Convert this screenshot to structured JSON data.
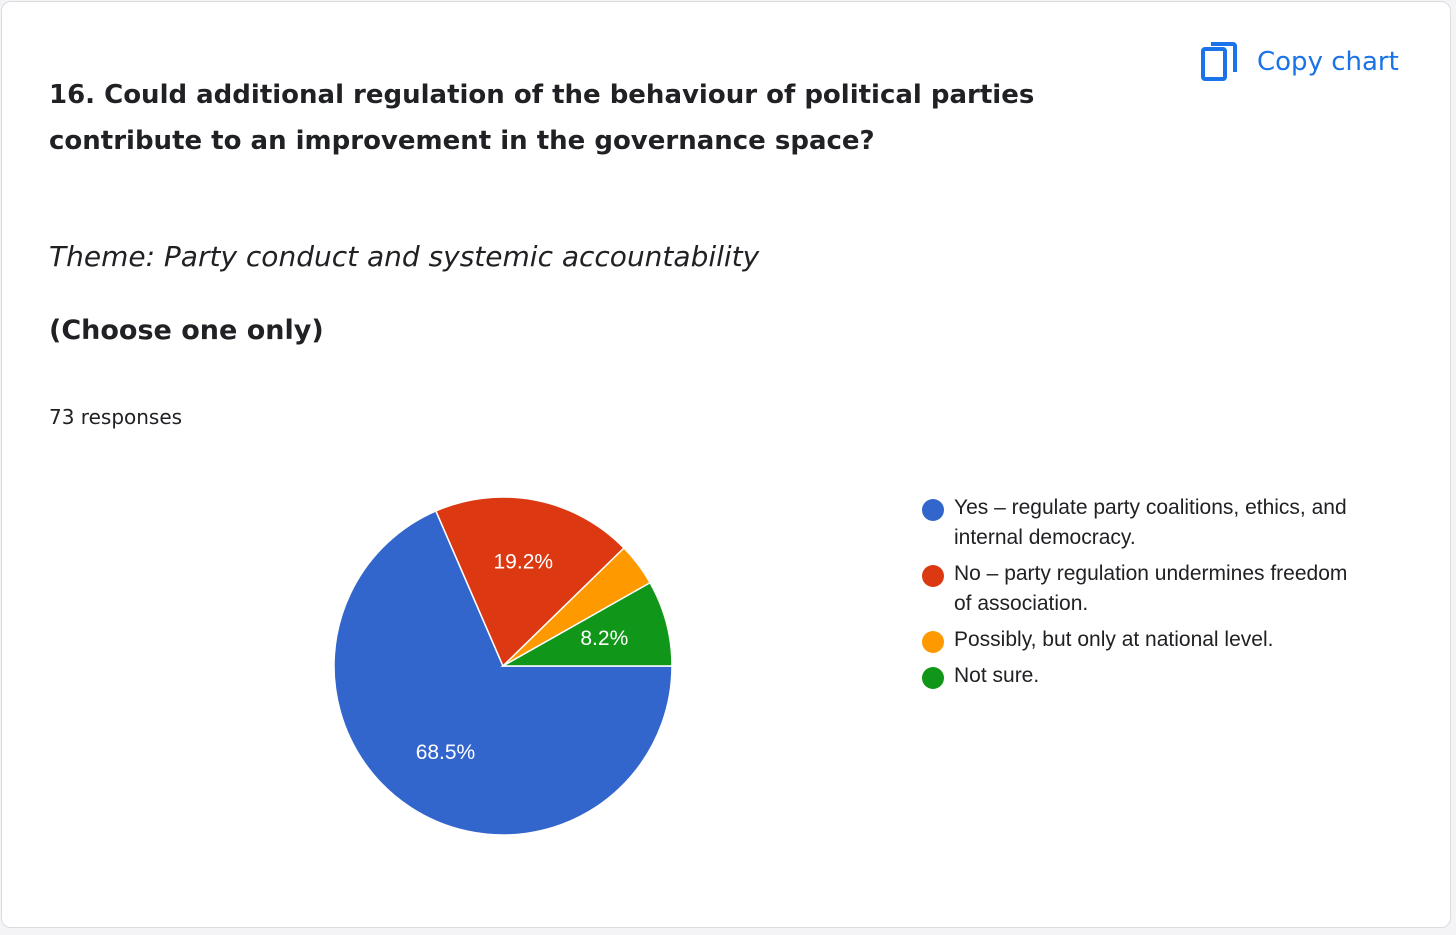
{
  "question": "16. Could additional regulation of the behaviour of political parties contribute to an improvement in the governance space?",
  "copy_chart": {
    "label": "Copy chart",
    "icon": "copy-icon"
  },
  "theme": "Theme: Party conduct and systemic accountability",
  "instruction": "(Choose one only)",
  "responses": "73 responses",
  "chart_data": {
    "type": "pie",
    "categories": [
      "Yes – regulate party coalitions, ethics, and internal democracy.",
      "No – party regulation undermines freedom of association.",
      "Possibly, but only at national level.",
      "Not sure."
    ],
    "values": [
      68.5,
      19.2,
      4.1,
      8.2
    ],
    "data_labels": [
      "68.5%",
      "19.2%",
      "",
      "8.2%"
    ],
    "colors": [
      "#3366cc",
      "#dc3912",
      "#ff9900",
      "#109618"
    ],
    "legend_position": "right"
  }
}
